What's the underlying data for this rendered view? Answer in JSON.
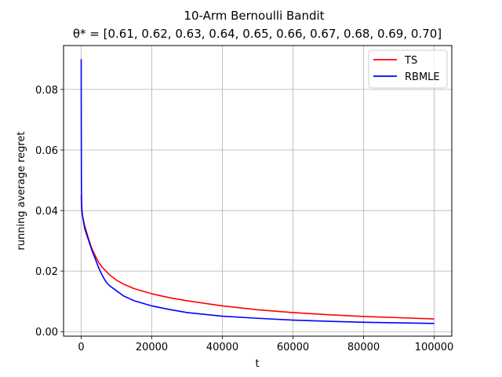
{
  "chart_data": {
    "type": "line",
    "title": "10-Arm Bernoulli Bandit",
    "subtitle": "θ* = [0.61, 0.62, 0.63, 0.64, 0.65, 0.66, 0.67, 0.68, 0.69, 0.70]",
    "xlabel": "t",
    "ylabel": "running average regret",
    "xlim": [
      -5000,
      105000
    ],
    "ylim": [
      -0.0015,
      0.0945
    ],
    "xticks": [
      0,
      20000,
      40000,
      60000,
      80000,
      100000
    ],
    "xtick_labels": [
      "0",
      "20000",
      "40000",
      "60000",
      "80000",
      "100000"
    ],
    "yticks": [
      0.0,
      0.02,
      0.04,
      0.06,
      0.08
    ],
    "ytick_labels": [
      "0.00",
      "0.02",
      "0.04",
      "0.06",
      "0.08"
    ],
    "grid": true,
    "legend_position": "top-right",
    "series": [
      {
        "name": "TS",
        "color": "#ff0000",
        "x": [
          0,
          100,
          300,
          600,
          1000,
          2000,
          3000,
          4000,
          5000,
          6000,
          8000,
          10000,
          12000,
          15000,
          20000,
          25000,
          30000,
          40000,
          50000,
          60000,
          70000,
          80000,
          90000,
          100000
        ],
        "y": [
          0.045,
          0.041,
          0.039,
          0.037,
          0.035,
          0.031,
          0.0275,
          0.025,
          0.0228,
          0.0212,
          0.0188,
          0.017,
          0.0157,
          0.0142,
          0.0125,
          0.0112,
          0.0102,
          0.0085,
          0.0072,
          0.0063,
          0.0056,
          0.005,
          0.0046,
          0.0042
        ]
      },
      {
        "name": "RBMLE",
        "color": "#0000ff",
        "x": [
          0,
          30,
          60,
          100,
          200,
          400,
          700,
          1000,
          2000,
          3000,
          4000,
          5000,
          6000,
          7000,
          8000,
          10000,
          12000,
          15000,
          20000,
          25000,
          30000,
          40000,
          50000,
          60000,
          70000,
          80000,
          90000,
          100000
        ],
        "y": [
          0.09,
          0.065,
          0.05,
          0.044,
          0.04,
          0.038,
          0.036,
          0.034,
          0.0305,
          0.027,
          0.024,
          0.021,
          0.0185,
          0.0165,
          0.0152,
          0.0135,
          0.0118,
          0.0102,
          0.0085,
          0.0073,
          0.0063,
          0.0051,
          0.0044,
          0.0038,
          0.0034,
          0.0031,
          0.0029,
          0.0027
        ]
      }
    ]
  }
}
